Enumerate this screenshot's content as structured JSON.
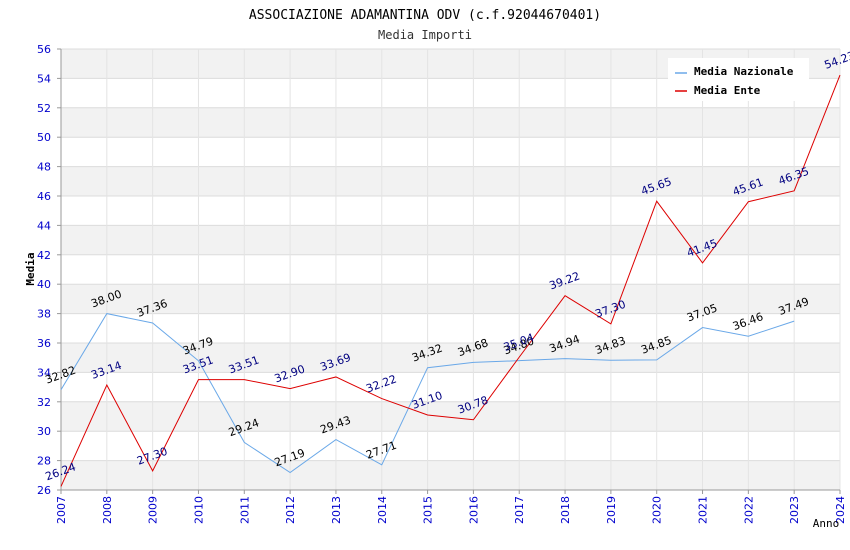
{
  "chart_data": {
    "type": "line",
    "title": "ASSOCIAZIONE ADAMANTINA ODV (c.f.92044670401)",
    "subtitle": "Media Importi",
    "xlabel": "Anno",
    "ylabel": "Media",
    "ylim": [
      26,
      56
    ],
    "yticks": [
      26,
      28,
      30,
      32,
      34,
      36,
      38,
      40,
      42,
      44,
      46,
      48,
      50,
      52,
      54,
      56
    ],
    "categories": [
      "2007",
      "2008",
      "2009",
      "2010",
      "2011",
      "2012",
      "2013",
      "2014",
      "2015",
      "2016",
      "2017",
      "2018",
      "2019",
      "2020",
      "2021",
      "2022",
      "2023",
      "2024"
    ],
    "legend_position": "top-right",
    "grid": true,
    "series": [
      {
        "name": "Media Nazionale",
        "color": "#6aa8e8",
        "label_color": "#000000",
        "values": [
          32.82,
          38.0,
          37.36,
          34.79,
          29.24,
          27.19,
          29.43,
          27.71,
          34.32,
          34.68,
          34.8,
          34.94,
          34.83,
          34.85,
          37.05,
          36.46,
          37.49,
          null
        ],
        "labels": [
          "32.82",
          "38.00",
          "37.36",
          "34.79",
          "29.24",
          "27.19",
          "29.43",
          "27.71",
          "34.32",
          "34.68",
          "34.80",
          "34.94",
          "34.83",
          "34.85",
          "37.05",
          "36.46",
          "37.49",
          null
        ]
      },
      {
        "name": "Media Ente",
        "color": "#dd0000",
        "label_color": "#000080",
        "values": [
          26.24,
          33.14,
          27.3,
          33.51,
          33.51,
          32.9,
          33.69,
          32.22,
          31.1,
          30.78,
          35.04,
          39.22,
          37.3,
          45.65,
          41.45,
          45.61,
          46.35,
          54.23
        ],
        "labels": [
          "26.24",
          "33.14",
          "27.30",
          "33.51",
          "33.51",
          "32.90",
          "33.69",
          "32.22",
          "31.10",
          "30.78",
          "35.04",
          "39.22",
          "37.30",
          "45.65",
          "41.45",
          "45.61",
          "46.35",
          "54.23"
        ]
      }
    ]
  }
}
